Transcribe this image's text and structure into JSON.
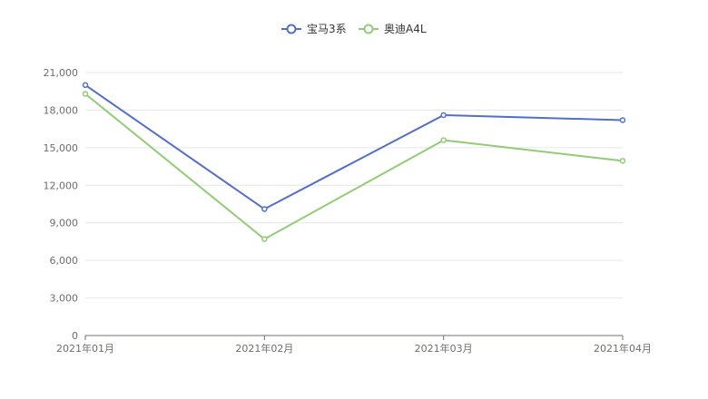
{
  "chart_data": {
    "type": "line",
    "title": "",
    "xlabel": "",
    "ylabel": "",
    "categories": [
      "2021年01月",
      "2021年02月",
      "2021年03月",
      "2021年04月"
    ],
    "ylim": [
      0,
      21000
    ],
    "yticks": [
      0,
      3000,
      6000,
      9000,
      12000,
      15000,
      18000,
      21000
    ],
    "ytick_labels": [
      "0",
      "3,000",
      "6,000",
      "9,000",
      "12,000",
      "15,000",
      "18,000",
      "21,000"
    ],
    "grid": true,
    "legend_position": "top-center",
    "series": [
      {
        "name": "宝马3系",
        "color": "#5470c6",
        "values": [
          20000,
          10100,
          17600,
          17200
        ]
      },
      {
        "name": "奥迪A4L",
        "color": "#91cc75",
        "values": [
          19300,
          7700,
          15600,
          13950
        ]
      }
    ]
  }
}
